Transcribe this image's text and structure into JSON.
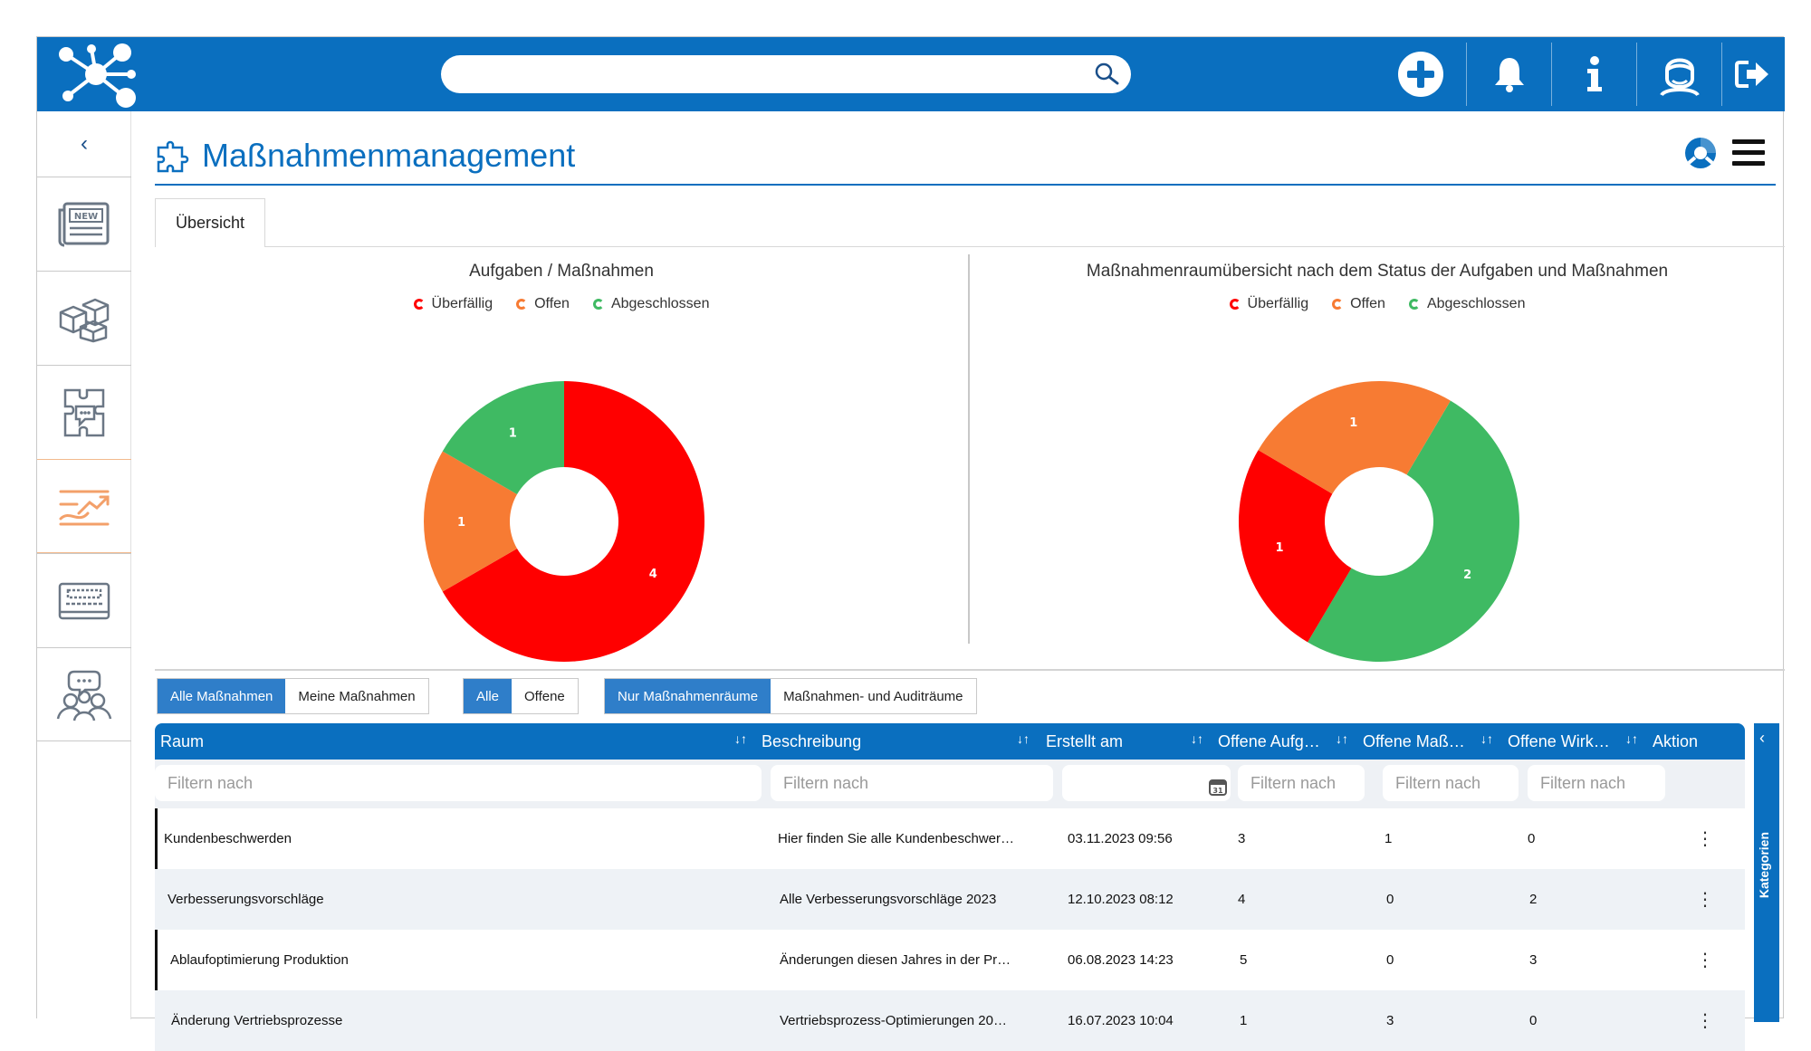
{
  "app": {
    "title": "Maßnahmenmanagement",
    "colors": {
      "brand": "#0a6fbf",
      "red": "#ff0000",
      "orange": "#f77b33",
      "green": "#3fba63"
    }
  },
  "topbar": {
    "search_placeholder": "",
    "icons": [
      "network-logo-icon",
      "search-icon",
      "plus-circle-icon",
      "bell-icon",
      "info-icon",
      "user-avatar-icon",
      "logout-icon"
    ]
  },
  "sidebar": {
    "collapse": "‹",
    "items": [
      {
        "icon": "news-icon",
        "badge": "NEW"
      },
      {
        "icon": "cubes-icon"
      },
      {
        "icon": "chat-puzzle-icon"
      },
      {
        "icon": "measures-trend-icon",
        "active": true
      },
      {
        "icon": "keyboard-card-icon"
      },
      {
        "icon": "team-icon"
      }
    ]
  },
  "tabs": [
    {
      "label": "Übersicht"
    }
  ],
  "legend": {
    "overdue": "Überfällig",
    "open": "Offen",
    "done": "Abgeschlossen"
  },
  "chart_data": [
    {
      "type": "pie",
      "title": "Aufgaben / Maßnahmen",
      "categories": [
        "Überfällig",
        "Offen",
        "Abgeschlossen"
      ],
      "values": [
        4,
        1,
        1
      ],
      "colors": [
        "#ff0000",
        "#f77b33",
        "#3fba63"
      ],
      "donut": true,
      "legend": "top"
    },
    {
      "type": "pie",
      "title": "Maßnahmenraumübersicht nach dem Status der Aufgaben und Maßnahmen",
      "categories": [
        "Überfällig",
        "Offen",
        "Abgeschlossen"
      ],
      "values": [
        1,
        1,
        2
      ],
      "colors": [
        "#ff0000",
        "#f77b33",
        "#3fba63"
      ],
      "donut": true,
      "legend": "top"
    }
  ],
  "filters": {
    "group1": [
      "Alle Maßnahmen",
      "Meine Maßnahmen"
    ],
    "group2": [
      "Alle",
      "Offene"
    ],
    "group3": [
      "Nur Maßnahmenräume",
      "Maßnahmen- und Auditräume"
    ]
  },
  "table": {
    "headers": [
      "Raum",
      "Beschreibung",
      "Erstellt am",
      "Offene Aufg…",
      "Offene Maß…",
      "Offene Wirk…",
      "Aktion"
    ],
    "sort_glyph": "↓↑",
    "filter_placeholder": "Filtern nach",
    "rows": [
      {
        "raum": "Kundenbeschwerden",
        "beschreibung": "Hier finden Sie alle Kundenbeschwer…",
        "erstellt": "03.11.2023  09:56",
        "aufg": "3",
        "mass": "1",
        "wirk": "0",
        "aktion": "⋮"
      },
      {
        "raum": "Verbesserungsvorschläge",
        "beschreibung": "Alle Verbesserungsvorschläge 2023",
        "erstellt": "12.10.2023  08:12",
        "aufg": "4",
        "mass": "0",
        "wirk": "2",
        "aktion": "⋮"
      },
      {
        "raum": "Ablaufoptimierung Produktion",
        "beschreibung": "Änderungen diesen Jahres in der Pr…",
        "erstellt": "06.08.2023  14:23",
        "aufg": "5",
        "mass": "0",
        "wirk": "3",
        "aktion": "⋮"
      },
      {
        "raum": "Änderung Vertriebsprozesse",
        "beschreibung": "Vertriebsprozess-Optimierungen 20…",
        "erstellt": "16.07.2023  10:04",
        "aufg": "1",
        "mass": "3",
        "wirk": "0",
        "aktion": "⋮"
      }
    ]
  },
  "kategorien": {
    "label": "Kategorien",
    "arrow": "‹"
  }
}
